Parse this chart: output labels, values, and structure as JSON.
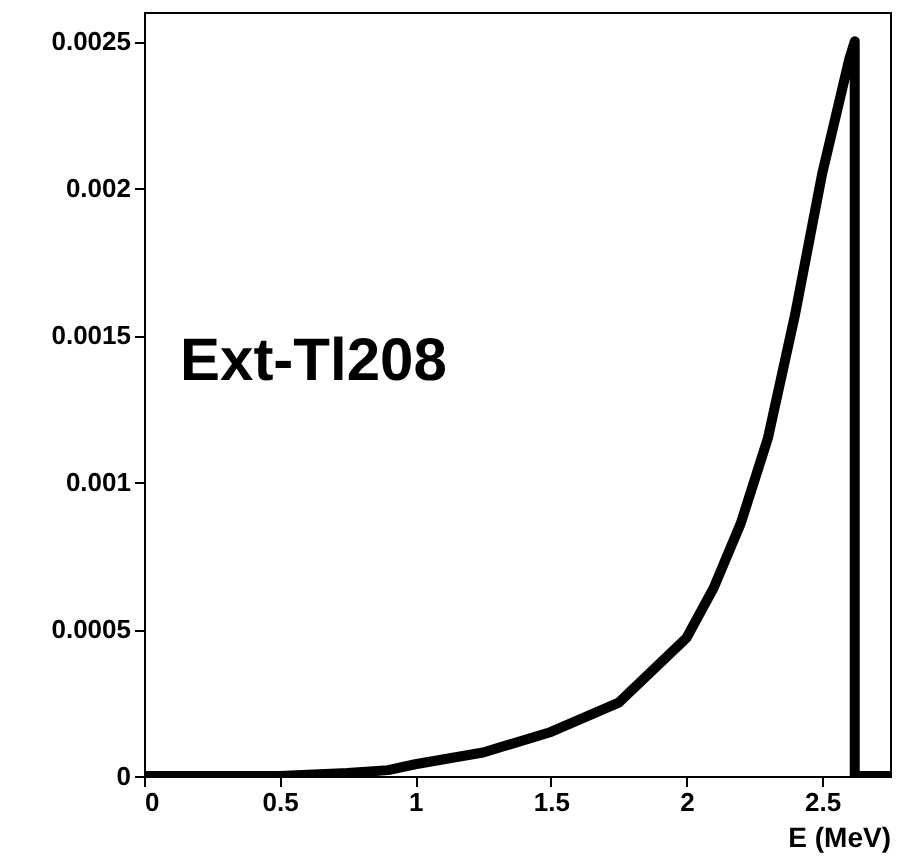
{
  "chart_data": {
    "type": "line",
    "xlabel": "E (MeV)",
    "annotations": [
      "Ext-Tl208"
    ],
    "x": [
      0,
      0.25,
      0.5,
      0.75,
      0.9,
      1,
      1.25,
      1.5,
      1.75,
      2,
      2.1,
      2.2,
      2.3,
      2.4,
      2.5,
      2.6,
      2.62,
      2.62,
      2.75
    ],
    "series": [
      {
        "color": "#000000",
        "values": [
          0,
          0,
          0,
          1e-05,
          2e-05,
          4e-05,
          8e-05,
          0.00015,
          0.00025,
          0.00047,
          0.00064,
          0.00086,
          0.00115,
          0.00157,
          0.00205,
          0.00244,
          0.0025,
          0,
          0
        ]
      }
    ],
    "xlim": [
      0,
      2.75
    ],
    "ylim": [
      0,
      0.0026
    ],
    "xticks": [
      0,
      0.5,
      1,
      1.5,
      2,
      2.5
    ],
    "yticks": [
      0,
      0.0005,
      0.001,
      0.0015,
      0.002,
      0.0025
    ],
    "grid": false,
    "marker": "none",
    "line_style": "solid"
  }
}
